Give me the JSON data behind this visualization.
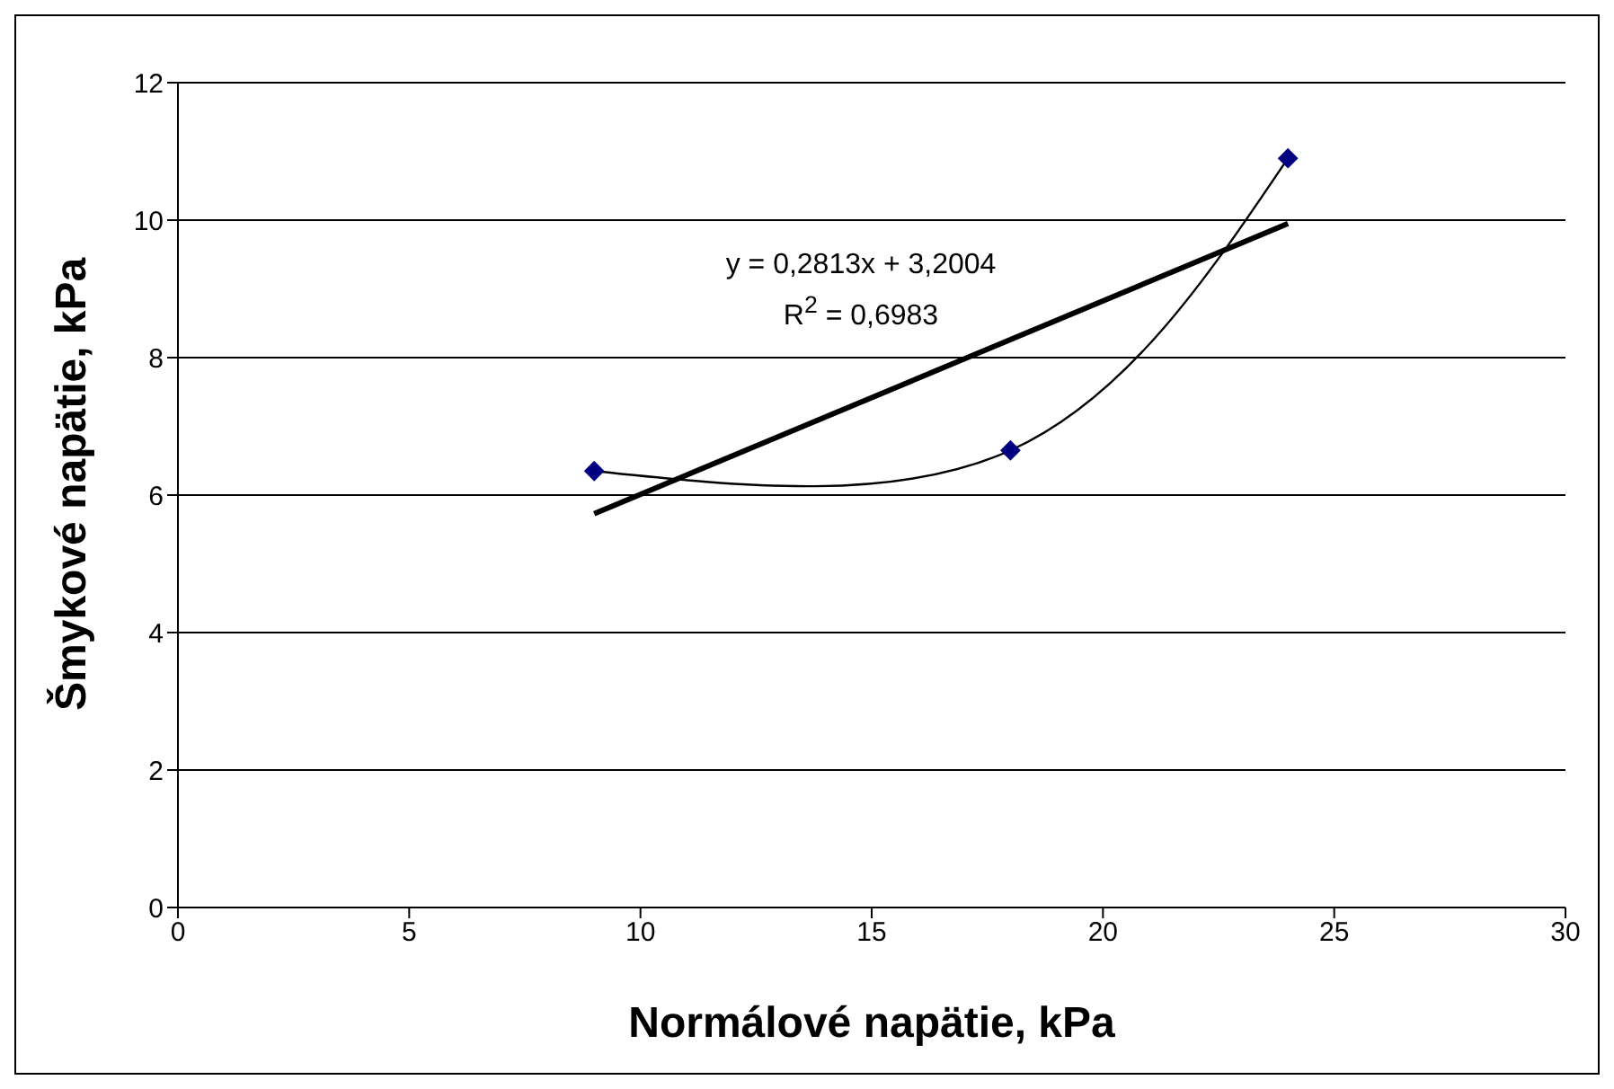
{
  "chart_data": {
    "type": "line",
    "xlabel": "Normálové napätie, kPa",
    "ylabel": "Šmykové napätie, kPa",
    "series": [
      {
        "color": "#000000",
        "x": [
          9,
          18,
          24
        ],
        "values": [
          6.35,
          6.65,
          10.9
        ],
        "marker": "none"
      },
      {
        "type": "scatter",
        "color": "#000080",
        "x": [
          9,
          18,
          24
        ],
        "values": [
          6.35,
          6.65,
          10.9
        ],
        "marker": "diamond"
      },
      {
        "color": "#000000",
        "x": [
          9,
          24
        ],
        "values": [
          5.73,
          9.95
        ],
        "marker": "none"
      }
    ],
    "annotations": [
      "y = 0,2813x + 3,2004",
      "R$^{2}$ = 0,6983"
    ],
    "xlim": [
      0,
      30
    ],
    "xticks": [
      0,
      5,
      10,
      15,
      20,
      25,
      30
    ],
    "ylim": [
      0,
      12
    ],
    "yticks": [
      0,
      2,
      4,
      6,
      8,
      10,
      12
    ],
    "grid": "y"
  }
}
